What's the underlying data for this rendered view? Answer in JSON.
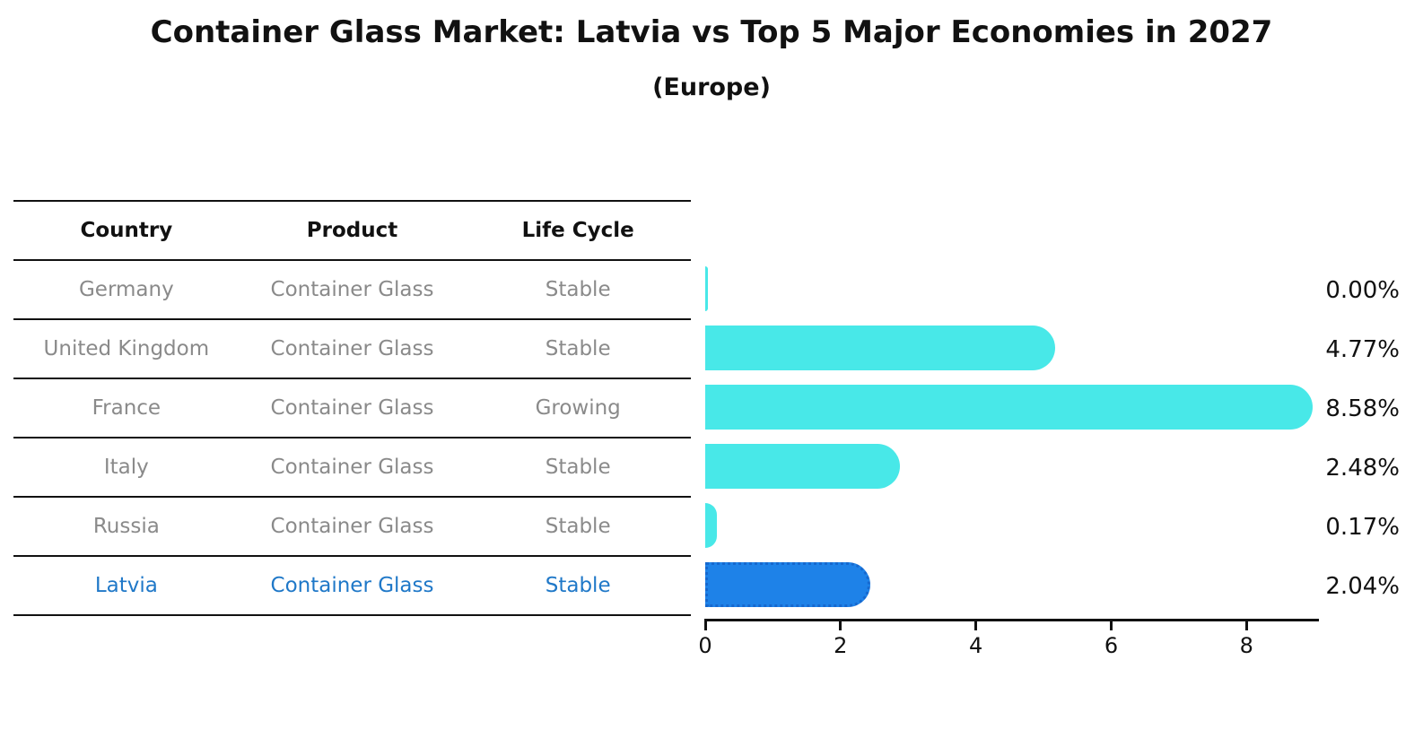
{
  "chart_data": {
    "type": "bar",
    "orientation": "horizontal",
    "title": "Container Glass Market: Latvia vs Top 5 Major Economies in 2027",
    "subtitle": "(Europe)",
    "xlabel": "",
    "ylabel": "",
    "xlim": [
      0,
      9.07
    ],
    "xticks": [
      0,
      2,
      4,
      6,
      8
    ],
    "grid": false,
    "legend": false,
    "table_headers": [
      "Country",
      "Product",
      "Life Cycle"
    ],
    "categories": [
      "Germany",
      "United Kingdom",
      "France",
      "Italy",
      "Russia",
      "Latvia"
    ],
    "values": [
      0.0,
      4.77,
      8.58,
      2.48,
      0.17,
      2.04
    ],
    "rows": [
      {
        "country": "Germany",
        "product": "Container Glass",
        "life_cycle": "Stable",
        "value": 0.0,
        "label": "0.00%",
        "highlight": false
      },
      {
        "country": "United Kingdom",
        "product": "Container Glass",
        "life_cycle": "Stable",
        "value": 4.77,
        "label": "4.77%",
        "highlight": false
      },
      {
        "country": "France",
        "product": "Container Glass",
        "life_cycle": "Growing",
        "value": 8.58,
        "label": "8.58%",
        "highlight": false
      },
      {
        "country": "Italy",
        "product": "Container Glass",
        "life_cycle": "Stable",
        "value": 2.48,
        "label": "2.48%",
        "highlight": false
      },
      {
        "country": "Russia",
        "product": "Container Glass",
        "life_cycle": "Stable",
        "value": 0.17,
        "label": "0.17%",
        "highlight": false
      },
      {
        "country": "Latvia",
        "product": "Container Glass",
        "life_cycle": "Stable",
        "value": 2.04,
        "label": "2.04%",
        "highlight": true
      }
    ],
    "colors": {
      "bar": "#48E8E8",
      "highlight_bar": "#1E82E8",
      "highlight_bar_border": "#1668CE",
      "highlight_text": "#1F78C8",
      "row_text": "#8A8A8A",
      "header_text": "#111111",
      "axis": "#111111"
    }
  }
}
